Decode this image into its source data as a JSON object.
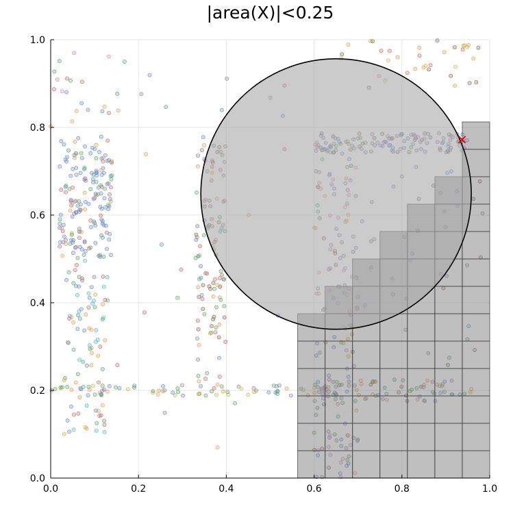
{
  "chart_data": {
    "type": "scatter",
    "title": "|area(X)|<0.25",
    "xlabel": "",
    "ylabel": "",
    "xlim": [
      0.0,
      1.0
    ],
    "ylim": [
      0.0,
      1.0
    ],
    "xticks": [
      "0.0",
      "0.2",
      "0.4",
      "0.6",
      "0.8",
      "1.0"
    ],
    "yticks": [
      "0.0",
      "0.2",
      "0.4",
      "0.6",
      "0.8",
      "1.0"
    ],
    "grid": true,
    "legend": "none",
    "colors": {
      "points": [
        "#6b8cc7",
        "#e0a050",
        "#5aa86a",
        "#c76b6b",
        "#9a74c4",
        "#8a6a4a",
        "#d48cc0",
        "#8c8c8c",
        "#c0c050",
        "#50b8c8"
      ],
      "circle_fill": "#a8a8a8",
      "staircase_fill": "#7f7f7f",
      "marker": "#e00000"
    },
    "circle": {
      "center": [
        0.65,
        0.648
      ],
      "radius": 0.308
    },
    "staircase": {
      "cell_size": 0.0625,
      "columns": [
        {
          "x0": 0.5625,
          "x1": 0.625,
          "top": 0.375
        },
        {
          "x0": 0.625,
          "x1": 0.6875,
          "top": 0.4375
        },
        {
          "x0": 0.6875,
          "x1": 0.75,
          "top": 0.5
        },
        {
          "x0": 0.75,
          "x1": 0.8125,
          "top": 0.5625
        },
        {
          "x0": 0.8125,
          "x1": 0.875,
          "top": 0.625
        },
        {
          "x0": 0.875,
          "x1": 0.9375,
          "top": 0.6875
        },
        {
          "x0": 0.9375,
          "x1": 1.0,
          "top": 0.8125
        }
      ]
    },
    "marker_point": {
      "x": 0.937,
      "y": 0.772
    },
    "point_clusters": [
      {
        "kind": "rect",
        "x": [
          0.02,
          0.14
        ],
        "y": [
          0.5,
          0.78
        ],
        "n": 170,
        "colors": [
          0,
          0,
          0,
          0,
          2,
          1,
          3
        ]
      },
      {
        "kind": "rect",
        "x": [
          0.03,
          0.13
        ],
        "y": [
          0.1,
          0.5
        ],
        "n": 90,
        "colors": [
          0,
          2,
          1,
          3,
          9
        ]
      },
      {
        "kind": "rect",
        "x": [
          0.0,
          0.18
        ],
        "y": [
          0.8,
          0.99
        ],
        "n": 22,
        "colors": [
          1,
          3,
          6,
          0,
          2
        ]
      },
      {
        "kind": "rect",
        "x": [
          0.33,
          0.4
        ],
        "y": [
          0.2,
          0.78
        ],
        "n": 110,
        "colors": [
          2,
          1,
          7,
          3,
          0,
          5
        ]
      },
      {
        "kind": "hband",
        "x": [
          0.0,
          0.62
        ],
        "y": 0.2,
        "dy": 0.012,
        "n": 70,
        "colors": [
          2,
          7,
          1,
          0,
          8
        ]
      },
      {
        "kind": "hband",
        "x": [
          0.6,
          0.96
        ],
        "y": 0.2,
        "dy": 0.025,
        "n": 70,
        "colors": [
          7,
          2,
          5,
          1,
          0
        ]
      },
      {
        "kind": "hband",
        "x": [
          0.6,
          0.95
        ],
        "y": 0.765,
        "dy": 0.022,
        "n": 110,
        "colors": [
          0,
          7,
          0,
          4,
          5,
          2
        ]
      },
      {
        "kind": "rect",
        "x": [
          0.6,
          0.7
        ],
        "y": [
          0.0,
          0.78
        ],
        "n": 170,
        "colors": [
          7,
          4,
          5,
          2,
          0,
          1,
          6
        ]
      },
      {
        "kind": "rect",
        "x": [
          0.63,
          0.99
        ],
        "y": [
          0.88,
          1.0
        ],
        "n": 35,
        "colors": [
          1,
          8,
          5,
          3
        ]
      },
      {
        "kind": "rect",
        "x": [
          0.7,
          0.99
        ],
        "y": [
          0.25,
          0.72
        ],
        "n": 40,
        "colors": [
          7,
          5,
          2,
          0
        ]
      },
      {
        "kind": "rect",
        "x": [
          0.15,
          0.55
        ],
        "y": [
          0.05,
          0.95
        ],
        "n": 22,
        "colors": [
          0,
          1,
          2,
          3,
          7
        ]
      }
    ]
  }
}
